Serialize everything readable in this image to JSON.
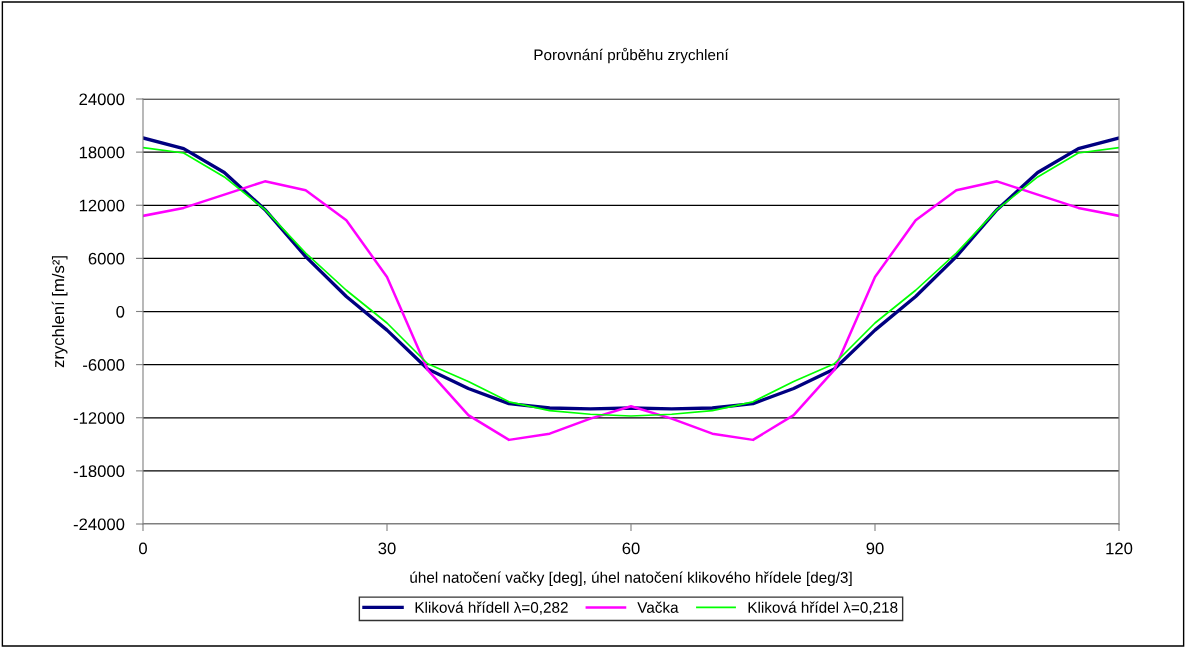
{
  "chart_data": {
    "type": "line",
    "title": "Porovnání průběhu zrychlení",
    "xlabel": "úhel natočení vačky [deg], úhel natočení klikového hřídele [deg/3]",
    "ylabel": "zrychlení [m/s²]",
    "x": [
      0,
      5,
      10,
      15,
      20,
      25,
      30,
      35,
      40,
      45,
      50,
      55,
      60,
      65,
      70,
      75,
      80,
      85,
      90,
      95,
      100,
      105,
      110,
      115,
      120
    ],
    "series": [
      {
        "name": "Kliková hřídell λ=0,282",
        "color": "#000080",
        "values": [
          19600,
          18400,
          15700,
          11500,
          6200,
          1700,
          -2100,
          -6500,
          -8700,
          -10400,
          -10900,
          -11000,
          -10900,
          -11000,
          -10900,
          -10400,
          -8700,
          -6500,
          -2100,
          1700,
          6200,
          11500,
          15700,
          18400,
          19600
        ]
      },
      {
        "name": "Vačka",
        "color": "#ff00ff",
        "values": [
          10800,
          11700,
          13200,
          14700,
          13700,
          10300,
          3900,
          -6600,
          -11700,
          -14500,
          -13800,
          -12100,
          -10700,
          -12100,
          -13800,
          -14500,
          -11700,
          -6600,
          3900,
          10300,
          13700,
          14700,
          13200,
          11700,
          10800
        ]
      },
      {
        "name": "Kliková hřídel λ=0,218",
        "color": "#00ff00",
        "values": [
          18500,
          17900,
          15200,
          11500,
          6600,
          2400,
          -1300,
          -5900,
          -7900,
          -10200,
          -11200,
          -11600,
          -11800,
          -11600,
          -11200,
          -10200,
          -7900,
          -5900,
          -1300,
          2400,
          6600,
          11500,
          15200,
          17900,
          18500
        ]
      }
    ],
    "xlim": [
      0,
      120
    ],
    "xticks": [
      0,
      30,
      60,
      90,
      120
    ],
    "ylim": [
      -24000,
      24000
    ],
    "yticks": [
      -24000,
      -18000,
      -12000,
      -6000,
      0,
      6000,
      12000,
      18000,
      24000
    ],
    "grid": "y",
    "legend": "bottom",
    "marker": "none",
    "line_style": "solid"
  }
}
